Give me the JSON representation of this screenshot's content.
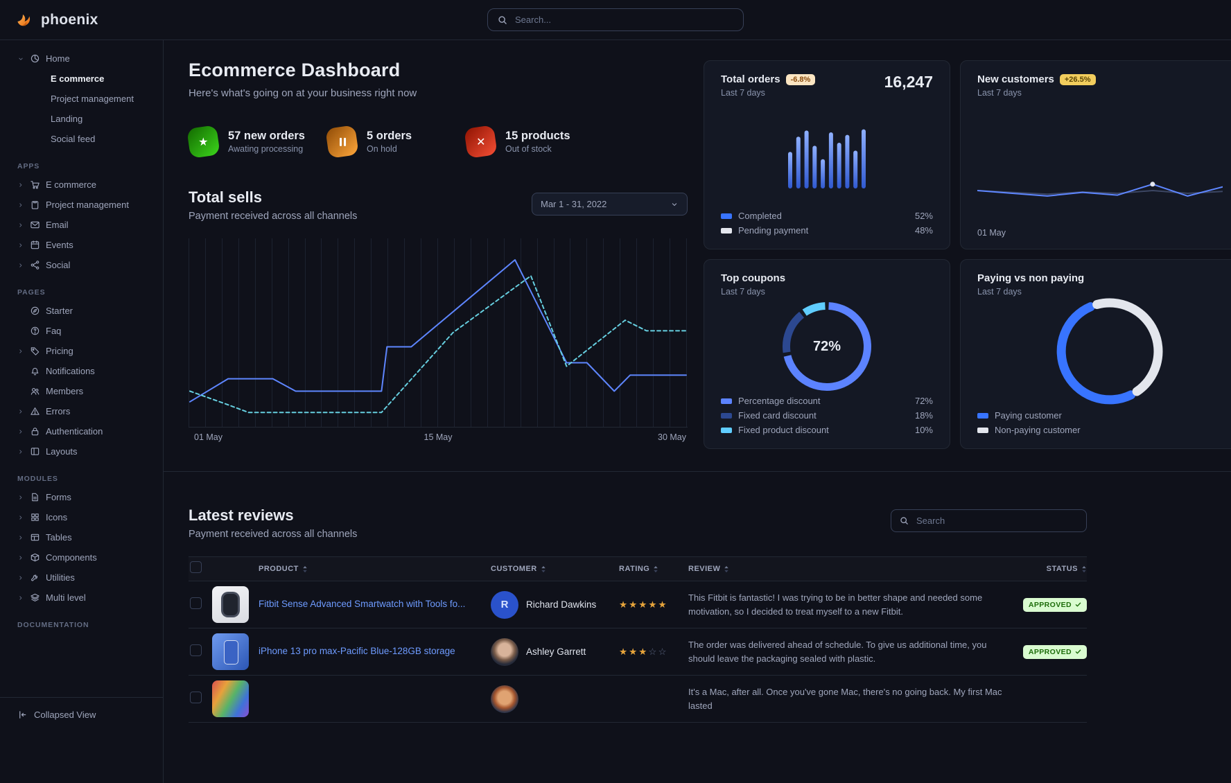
{
  "app": {
    "brand": "phoenix",
    "search_placeholder": "Search..."
  },
  "sidebar": {
    "home": {
      "label": "Home",
      "icon": "pie-chart",
      "children": [
        {
          "label": "E commerce",
          "active": true
        },
        {
          "label": "Project management",
          "active": false
        },
        {
          "label": "Landing",
          "active": false
        },
        {
          "label": "Social feed",
          "active": false
        }
      ]
    },
    "sections": [
      {
        "title": "APPS",
        "items": [
          {
            "label": "E commerce",
            "icon": "shopping-cart",
            "caret": true
          },
          {
            "label": "Project management",
            "icon": "clipboard",
            "caret": true
          },
          {
            "label": "Email",
            "icon": "envelope",
            "caret": true
          },
          {
            "label": "Events",
            "icon": "calendar",
            "caret": true
          },
          {
            "label": "Social",
            "icon": "share",
            "caret": true
          }
        ]
      },
      {
        "title": "PAGES",
        "items": [
          {
            "label": "Starter",
            "icon": "compass",
            "caret": false
          },
          {
            "label": "Faq",
            "icon": "question-circle",
            "caret": false
          },
          {
            "label": "Pricing",
            "icon": "tag",
            "caret": true
          },
          {
            "label": "Notifications",
            "icon": "bell",
            "caret": false
          },
          {
            "label": "Members",
            "icon": "users",
            "caret": false
          },
          {
            "label": "Errors",
            "icon": "warning",
            "caret": true
          },
          {
            "label": "Authentication",
            "icon": "lock",
            "caret": true
          },
          {
            "label": "Layouts",
            "icon": "layout",
            "caret": true
          }
        ]
      },
      {
        "title": "MODULES",
        "items": [
          {
            "label": "Forms",
            "icon": "file-text",
            "caret": true
          },
          {
            "label": "Icons",
            "icon": "grid",
            "caret": true
          },
          {
            "label": "Tables",
            "icon": "table",
            "caret": true
          },
          {
            "label": "Components",
            "icon": "package",
            "caret": true
          },
          {
            "label": "Utilities",
            "icon": "tool",
            "caret": true
          },
          {
            "label": "Multi level",
            "icon": "layers",
            "caret": true
          }
        ]
      },
      {
        "title": "DOCUMENTATION",
        "items": []
      }
    ],
    "collapsed_label": "Collapsed View"
  },
  "header": {
    "title": "Ecommerce Dashboard",
    "subtitle": "Here's what's going on at your business right now"
  },
  "stats": [
    {
      "value": "57 new orders",
      "caption": "Awating processing",
      "icon": "star",
      "color1": "#3cd61c",
      "color2": "#136a00"
    },
    {
      "value": "5 orders",
      "caption": "On hold",
      "icon": "pause",
      "color1": "#ffa73b",
      "color2": "#8f4b06"
    },
    {
      "value": "15 products",
      "caption": "Out of stock",
      "icon": "x",
      "color1": "#f54f35",
      "color2": "#8f1302"
    }
  ],
  "total_sells": {
    "title": "Total sells",
    "subtitle": "Payment received across all channels",
    "date_range": "Mar 1 - 31, 2022"
  },
  "cards": {
    "total_orders": {
      "title": "Total orders",
      "badge": "-6.8%",
      "period": "Last 7 days",
      "value": "16,247",
      "legend": [
        {
          "label": "Completed",
          "value": "52%",
          "color": "#3874ff"
        },
        {
          "label": "Pending payment",
          "value": "48%",
          "color": "#e3e6ed"
        }
      ]
    },
    "new_customers": {
      "title": "New customers",
      "badge": "+26.5%",
      "period": "Last 7 days",
      "xlabel": "01 May"
    },
    "top_coupons": {
      "title": "Top coupons",
      "period": "Last 7 days",
      "center_label": "72%"
    },
    "paying": {
      "title": "Paying vs non paying",
      "period": "Last 7 days"
    }
  },
  "reviews": {
    "title": "Latest reviews",
    "subtitle": "Payment received across all channels",
    "search_placeholder": "Search",
    "columns": [
      "PRODUCT",
      "CUSTOMER",
      "RATING",
      "REVIEW",
      "STATUS"
    ],
    "rows": [
      {
        "product_name": "Fitbit Sense Advanced Smartwatch with Tools fo...",
        "thumb": "watch",
        "customer": "Richard Dawkins",
        "avatar": "initial",
        "avatar_text": "R",
        "rating": 5,
        "review": "This Fitbit is fantastic! I was trying to be in better shape and needed some motivation, so I decided to treat myself to a new Fitbit.",
        "status": "APPROVED"
      },
      {
        "product_name": "iPhone 13 pro max-Pacific Blue-128GB storage",
        "thumb": "iphone",
        "customer": "Ashley Garrett",
        "avatar": "photo-1",
        "avatar_text": "",
        "rating": 3,
        "review": "The order was delivered ahead of schedule. To give us additional time, you should leave the packaging sealed with plastic.",
        "status": "APPROVED"
      },
      {
        "product_name": "",
        "thumb": "macbook",
        "customer": "",
        "avatar": "photo-2",
        "avatar_text": "",
        "rating": null,
        "review": "It's a Mac, after all. Once you've gone Mac, there's no going back. My first Mac lasted",
        "status": ""
      }
    ]
  },
  "chart_data": [
    {
      "id": "total-sells",
      "type": "line",
      "title": "Total sells",
      "x_ticks": [
        "01 May",
        "15 May",
        "30 May"
      ],
      "ylim": [
        0,
        100
      ],
      "grid": "vertical",
      "gridlines": 31,
      "legend_position": "none",
      "series": [
        {
          "name": "current",
          "color": "#5e86ff",
          "style": "solid",
          "points": [
            {
              "x": 0,
              "v": 11
            },
            {
              "x": 0.077,
              "v": 24
            },
            {
              "x": 0.167,
              "v": 24
            },
            {
              "x": 0.213,
              "v": 17
            },
            {
              "x": 0.386,
              "v": 17
            },
            {
              "x": 0.397,
              "v": 42
            },
            {
              "x": 0.446,
              "v": 42
            },
            {
              "x": 0.655,
              "v": 91
            },
            {
              "x": 0.759,
              "v": 33
            },
            {
              "x": 0.8,
              "v": 33
            },
            {
              "x": 0.855,
              "v": 17
            },
            {
              "x": 0.887,
              "v": 26
            },
            {
              "x": 1,
              "v": 26
            }
          ]
        },
        {
          "name": "previous",
          "color": "#66cfe0",
          "style": "dashed",
          "points": [
            {
              "x": 0,
              "v": 17
            },
            {
              "x": 0.08,
              "v": 9
            },
            {
              "x": 0.118,
              "v": 5
            },
            {
              "x": 0.386,
              "v": 5
            },
            {
              "x": 0.53,
              "v": 50
            },
            {
              "x": 0.687,
              "v": 82
            },
            {
              "x": 0.759,
              "v": 31
            },
            {
              "x": 0.877,
              "v": 57
            },
            {
              "x": 0.92,
              "v": 51
            },
            {
              "x": 1,
              "v": 51
            }
          ]
        }
      ]
    },
    {
      "id": "orders-bars",
      "type": "bar",
      "values": [
        60,
        85,
        95,
        70,
        48,
        92,
        75,
        88,
        62,
        97
      ],
      "ylim": [
        0,
        100
      ],
      "color_from": "#8fb0ff",
      "color_to": "#3059d0"
    },
    {
      "id": "customers-spark",
      "type": "line-spark",
      "ylim": [
        0,
        100
      ],
      "series": [
        {
          "name": "previous",
          "color": "#3c4663",
          "values": [
            50,
            46,
            42,
            47,
            44,
            50,
            44,
            48
          ]
        },
        {
          "name": "current",
          "color": "#5e86ff",
          "values": [
            50,
            44,
            38,
            46,
            40,
            64,
            38,
            58
          ]
        }
      ],
      "dot": {
        "series": 1,
        "index": 5,
        "color": "#e3e6ed"
      }
    },
    {
      "id": "coupons-donut",
      "type": "donut",
      "center_label": "72%",
      "slices": [
        {
          "label": "Percentage discount",
          "value": 72,
          "color": "#5c83ff"
        },
        {
          "label": "Fixed card discount",
          "value": 18,
          "color": "#2c4890"
        },
        {
          "label": "Fixed product discount",
          "value": 10,
          "color": "#60cdff"
        }
      ]
    },
    {
      "id": "paying-gauge",
      "type": "gauge",
      "segments": [
        {
          "label": "Paying customer",
          "value": 53,
          "color": "#3874ff"
        },
        {
          "label": "Non-paying customer",
          "value": 47,
          "color": "#e3e6ed"
        }
      ]
    }
  ]
}
